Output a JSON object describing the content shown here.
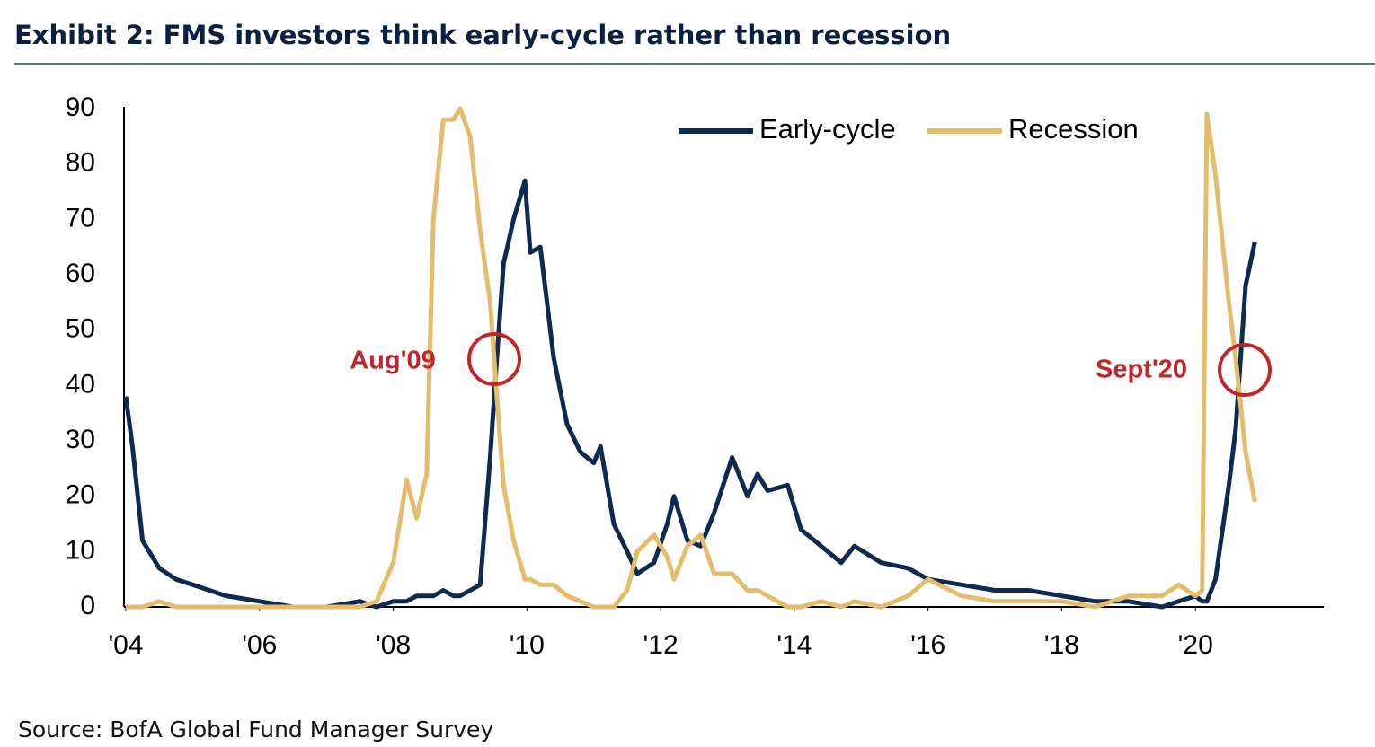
{
  "chart_data": {
    "type": "line",
    "title": "Exhibit 2: FMS investors think early-cycle rather than recession",
    "source": "Source: BofA Global Fund Manager Survey",
    "x": [
      2004.0,
      2004.1,
      2004.25,
      2004.5,
      2004.75,
      2005.0,
      2005.5,
      2006.0,
      2006.5,
      2007.0,
      2007.5,
      2007.75,
      2008.0,
      2008.2,
      2008.35,
      2008.5,
      2008.6,
      2008.75,
      2008.9,
      2009.0,
      2009.15,
      2009.3,
      2009.45,
      2009.55,
      2009.65,
      2009.8,
      2009.97,
      2010.05,
      2010.2,
      2010.4,
      2010.6,
      2010.8,
      2011.0,
      2011.1,
      2011.3,
      2011.5,
      2011.65,
      2011.9,
      2012.1,
      2012.2,
      2012.4,
      2012.6,
      2012.8,
      2013.07,
      2013.3,
      2013.45,
      2013.6,
      2013.9,
      2014.1,
      2014.4,
      2014.7,
      2014.9,
      2015.3,
      2015.7,
      2016.0,
      2016.5,
      2017.0,
      2017.5,
      2018.0,
      2018.5,
      2019.0,
      2019.5,
      2019.75,
      2020.0,
      2020.1,
      2020.17,
      2020.3,
      2020.5,
      2020.6,
      2020.75,
      2020.89
    ],
    "series": [
      {
        "name": "Early-cycle",
        "color": "#0f2a4f",
        "values": [
          38,
          29,
          12,
          7,
          5,
          4,
          2,
          1,
          0,
          0,
          1,
          0,
          1,
          1,
          2,
          2,
          2,
          3,
          2,
          2,
          3,
          4,
          27,
          45,
          62,
          70,
          77,
          64,
          65,
          45,
          33,
          28,
          26,
          29,
          15,
          10,
          6,
          8,
          15,
          20,
          12,
          11,
          17,
          27,
          20,
          24,
          21,
          22,
          14,
          11,
          8,
          11,
          8,
          7,
          5,
          4,
          3,
          3,
          2,
          1,
          1,
          0,
          1,
          2,
          1,
          1,
          5,
          22,
          32,
          58,
          66
        ]
      },
      {
        "name": "Recession",
        "color": "#e2bd6c",
        "values": [
          0,
          0,
          0,
          1,
          0,
          0,
          0,
          0,
          0,
          0,
          0,
          1,
          8,
          23,
          16,
          24,
          70,
          88,
          88,
          90,
          85,
          68,
          55,
          38,
          22,
          12,
          5,
          5,
          4,
          4,
          2,
          1,
          0,
          0,
          0,
          3,
          10,
          13,
          9,
          5,
          11,
          13,
          6,
          6,
          3,
          3,
          2,
          0,
          0,
          1,
          0,
          1,
          0,
          2,
          5,
          2,
          1,
          1,
          1,
          0,
          2,
          2,
          4,
          2,
          3,
          89,
          78,
          55,
          45,
          28,
          19
        ]
      }
    ],
    "xlim": [
      2004,
      2022
    ],
    "xticks": [
      {
        "value": 2004,
        "label": "'04"
      },
      {
        "value": 2006,
        "label": "'06"
      },
      {
        "value": 2008,
        "label": "'08"
      },
      {
        "value": 2010,
        "label": "'10"
      },
      {
        "value": 2012,
        "label": "'12"
      },
      {
        "value": 2014,
        "label": "'14"
      },
      {
        "value": 2016,
        "label": "'16"
      },
      {
        "value": 2018,
        "label": "'18"
      },
      {
        "value": 2020,
        "label": "'20"
      }
    ],
    "ylim": [
      0,
      90
    ],
    "yticks": [
      0,
      10,
      20,
      30,
      40,
      50,
      60,
      70,
      80,
      90
    ],
    "grid": false,
    "legend": "top",
    "annotations": [
      {
        "text": "Aug'09",
        "color": "#c0272d"
      },
      {
        "text": "Sept'20",
        "color": "#c0272d"
      }
    ]
  }
}
